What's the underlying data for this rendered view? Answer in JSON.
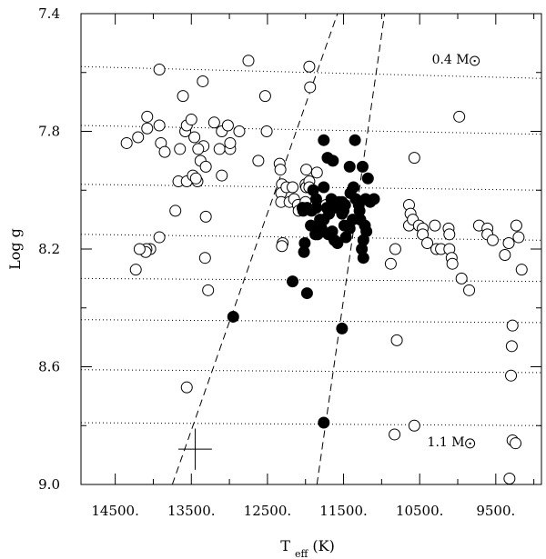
{
  "chart_data": {
    "type": "scatter",
    "xlabel": "T",
    "xlabel_sub": "eff",
    "xlabel_unit": " (K)",
    "ylabel": "Log g",
    "xlim": [
      14950,
      8900
    ],
    "ylim": [
      7.4,
      9.0
    ],
    "x_ticks": [
      14500,
      13500,
      12500,
      11500,
      10500,
      9500
    ],
    "x_tick_labels": [
      "14500.",
      "13500.",
      "12500.",
      "11500.",
      "10500.",
      "9500."
    ],
    "x_minor_ticks": [
      14000,
      13000,
      12000,
      11000,
      10000,
      9000
    ],
    "y_ticks": [
      7.4,
      7.8,
      8.2,
      8.6,
      9.0
    ],
    "y_tick_labels": [
      "7.4",
      "7.8",
      "8.2",
      "8.6",
      "9.0"
    ],
    "y_minor_ticks": [
      7.6,
      8.0,
      8.4,
      8.8
    ],
    "grid": false,
    "series": [
      {
        "marker": "open-circle",
        "points": [
          [
            14350,
            7.84
          ],
          [
            14200,
            7.82
          ],
          [
            14080,
            7.79
          ],
          [
            14080,
            7.75
          ],
          [
            13920,
            7.59
          ],
          [
            13920,
            7.78
          ],
          [
            13900,
            7.84
          ],
          [
            13850,
            7.87
          ],
          [
            13650,
            7.86
          ],
          [
            13610,
            7.68
          ],
          [
            13580,
            7.8
          ],
          [
            13560,
            7.78
          ],
          [
            13500,
            7.76
          ],
          [
            13460,
            7.82
          ],
          [
            13350,
            7.63
          ],
          [
            13340,
            7.85
          ],
          [
            13410,
            7.86
          ],
          [
            13380,
            7.9
          ],
          [
            13310,
            7.92
          ],
          [
            13200,
            7.77
          ],
          [
            13130,
            7.86
          ],
          [
            13100,
            7.8
          ],
          [
            13100,
            7.95
          ],
          [
            13020,
            7.78
          ],
          [
            12990,
            7.86
          ],
          [
            12990,
            7.84
          ],
          [
            12870,
            7.8
          ],
          [
            12750,
            7.56
          ],
          [
            12620,
            7.9
          ],
          [
            12530,
            7.68
          ],
          [
            12510,
            7.8
          ],
          [
            12340,
            7.91
          ],
          [
            12330,
            7.93
          ],
          [
            12310,
            7.98
          ],
          [
            12320,
            8.01
          ],
          [
            12320,
            8.04
          ],
          [
            12300,
            8.18
          ],
          [
            12310,
            8.19
          ],
          [
            12250,
            7.99
          ],
          [
            12210,
            8.04
          ],
          [
            12170,
            7.99
          ],
          [
            12150,
            8.03
          ],
          [
            12100,
            8.05
          ],
          [
            12090,
            8.07
          ],
          [
            12000,
            7.98
          ],
          [
            11990,
            7.93
          ],
          [
            11990,
            7.99
          ],
          [
            11950,
            7.58
          ],
          [
            11940,
            7.65
          ],
          [
            11950,
            7.97
          ],
          [
            11950,
            7.99
          ],
          [
            11850,
            7.94
          ],
          [
            12000,
            8.04
          ],
          [
            11730,
            8.05
          ],
          [
            13710,
            8.07
          ],
          [
            13670,
            7.97
          ],
          [
            13560,
            7.97
          ],
          [
            13480,
            7.95
          ],
          [
            13420,
            7.97
          ],
          [
            13440,
            7.96
          ],
          [
            13310,
            8.09
          ],
          [
            13320,
            8.23
          ],
          [
            13280,
            8.34
          ],
          [
            13560,
            8.67
          ],
          [
            13920,
            8.16
          ],
          [
            14040,
            8.2
          ],
          [
            14090,
            8.2
          ],
          [
            14100,
            8.21
          ],
          [
            14180,
            8.2
          ],
          [
            14230,
            8.27
          ],
          [
            10880,
            8.25
          ],
          [
            10820,
            8.2
          ],
          [
            10800,
            8.51
          ],
          [
            10570,
            7.89
          ],
          [
            10640,
            8.05
          ],
          [
            10620,
            8.08
          ],
          [
            10640,
            8.12
          ],
          [
            10590,
            8.1
          ],
          [
            10510,
            8.12
          ],
          [
            10460,
            8.13
          ],
          [
            10460,
            8.15
          ],
          [
            10400,
            8.18
          ],
          [
            10300,
            8.12
          ],
          [
            10280,
            8.2
          ],
          [
            10220,
            8.2
          ],
          [
            10120,
            8.13
          ],
          [
            10110,
            8.15
          ],
          [
            10110,
            8.2
          ],
          [
            10080,
            8.23
          ],
          [
            10070,
            8.25
          ],
          [
            9980,
            7.75
          ],
          [
            9950,
            8.3
          ],
          [
            9850,
            8.34
          ],
          [
            9720,
            8.12
          ],
          [
            9610,
            8.13
          ],
          [
            9610,
            8.15
          ],
          [
            9540,
            8.17
          ],
          [
            9380,
            8.22
          ],
          [
            9330,
            8.18
          ],
          [
            9300,
            8.63
          ],
          [
            9290,
            8.53
          ],
          [
            9280,
            8.46
          ],
          [
            9280,
            8.85
          ],
          [
            9240,
            8.86
          ],
          [
            9230,
            8.12
          ],
          [
            9200,
            8.16
          ],
          [
            9160,
            8.27
          ],
          [
            10570,
            8.8
          ],
          [
            10830,
            8.83
          ],
          [
            9320,
            8.98
          ]
        ]
      },
      {
        "marker": "filled-circle",
        "points": [
          [
            12950,
            8.43
          ],
          [
            12170,
            8.31
          ],
          [
            11980,
            8.35
          ],
          [
            11520,
            8.47
          ],
          [
            11760,
            8.79
          ],
          [
            11760,
            7.83
          ],
          [
            11350,
            7.83
          ],
          [
            11760,
            7.99
          ],
          [
            11710,
            7.89
          ],
          [
            11640,
            7.9
          ],
          [
            11420,
            7.92
          ],
          [
            11250,
            7.92
          ],
          [
            11180,
            7.96
          ],
          [
            11210,
            8.03
          ],
          [
            11150,
            8.04
          ],
          [
            11100,
            8.03
          ],
          [
            11410,
            8.01
          ],
          [
            11370,
            7.99
          ],
          [
            11340,
            8.03
          ],
          [
            11300,
            8.05
          ],
          [
            11290,
            8.07
          ],
          [
            11280,
            8.1
          ],
          [
            11220,
            8.12
          ],
          [
            11200,
            8.14
          ],
          [
            11240,
            8.17
          ],
          [
            11260,
            8.2
          ],
          [
            11240,
            8.23
          ],
          [
            11380,
            8.1
          ],
          [
            11420,
            8.13
          ],
          [
            11470,
            8.16
          ],
          [
            11490,
            8.12
          ],
          [
            11500,
            8.07
          ],
          [
            11520,
            8.04
          ],
          [
            11580,
            8.05
          ],
          [
            11630,
            8.06
          ],
          [
            11690,
            8.08
          ],
          [
            11760,
            8.1
          ],
          [
            11810,
            8.1
          ],
          [
            11860,
            8.06
          ],
          [
            11920,
            8.07
          ],
          [
            11980,
            8.06
          ],
          [
            12030,
            8.07
          ],
          [
            12040,
            8.06
          ],
          [
            11840,
            8.15
          ],
          [
            11700,
            8.15
          ],
          [
            11650,
            8.14
          ],
          [
            11620,
            8.17
          ],
          [
            11580,
            8.18
          ],
          [
            11520,
            8.08
          ],
          [
            11480,
            8.05
          ],
          [
            11560,
            8.04
          ],
          [
            11660,
            8.03
          ],
          [
            11720,
            8.06
          ],
          [
            11790,
            8.13
          ],
          [
            11870,
            8.15
          ],
          [
            11930,
            8.12
          ],
          [
            12010,
            8.18
          ],
          [
            12020,
            8.21
          ],
          [
            11860,
            8.03
          ],
          [
            11900,
            8.0
          ]
        ]
      }
    ],
    "mass_tracks": [
      {
        "label": "0.4 M",
        "points": [
          [
            14950,
            7.58
          ],
          [
            8900,
            7.62
          ]
        ]
      },
      {
        "label": "",
        "points": [
          [
            14950,
            7.78
          ],
          [
            8900,
            7.81
          ]
        ]
      },
      {
        "label": "",
        "points": [
          [
            14950,
            7.98
          ],
          [
            8900,
            8.0
          ]
        ]
      },
      {
        "label": "",
        "points": [
          [
            14950,
            8.15
          ],
          [
            8900,
            8.17
          ]
        ]
      },
      {
        "label": "",
        "points": [
          [
            14950,
            8.3
          ],
          [
            8900,
            8.31
          ]
        ]
      },
      {
        "label": "",
        "points": [
          [
            14950,
            8.44
          ],
          [
            8900,
            8.45
          ]
        ]
      },
      {
        "label": "",
        "points": [
          [
            14950,
            8.61
          ],
          [
            8900,
            8.62
          ]
        ]
      },
      {
        "label": "1.1 M",
        "points": [
          [
            14950,
            8.79
          ],
          [
            8900,
            8.8
          ]
        ]
      }
    ],
    "instability_strip": [
      {
        "points": [
          [
            13750,
            9.0
          ],
          [
            11580,
            7.4
          ]
        ]
      },
      {
        "points": [
          [
            11850,
            9.0
          ],
          [
            10960,
            7.4
          ]
        ]
      }
    ],
    "error_bar": {
      "x": 13450,
      "y": 8.88,
      "dx": 220,
      "dy": 0.07
    },
    "annotations": [
      {
        "text": "0.4 M",
        "x": 10340,
        "y": 7.57,
        "symbol": "sun"
      },
      {
        "text": "1.1 M",
        "x": 10400,
        "y": 8.87,
        "symbol": "sun"
      }
    ]
  }
}
